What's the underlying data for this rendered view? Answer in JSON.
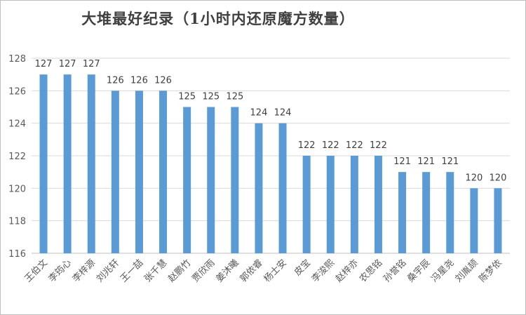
{
  "chart_data": {
    "type": "bar",
    "title": "大堆最好纪录（1小时内还原魔方数量）",
    "xlabel": "",
    "ylabel": "",
    "ylim": [
      116,
      128
    ],
    "yticks": [
      116,
      118,
      120,
      122,
      124,
      126,
      128
    ],
    "categories": [
      "王伯文",
      "李筠心",
      "李梓源",
      "刘兆轩",
      "王一喆",
      "张千慧",
      "赵鹏竹",
      "贾欣雨",
      "姜沐曦",
      "郭依睿",
      "杨士安",
      "皮宝",
      "李浚熙",
      "赵梓亦",
      "农思铭",
      "孙誉铭",
      "桑宇辰",
      "冯星尧",
      "刘胤颉",
      "陈梦依"
    ],
    "values": [
      127,
      127,
      127,
      126,
      126,
      126,
      125,
      125,
      125,
      124,
      124,
      122,
      122,
      122,
      122,
      121,
      121,
      121,
      120,
      120
    ],
    "bar_color": "#5B9BD5",
    "grid": true,
    "legend": "none",
    "data_labels": true
  }
}
